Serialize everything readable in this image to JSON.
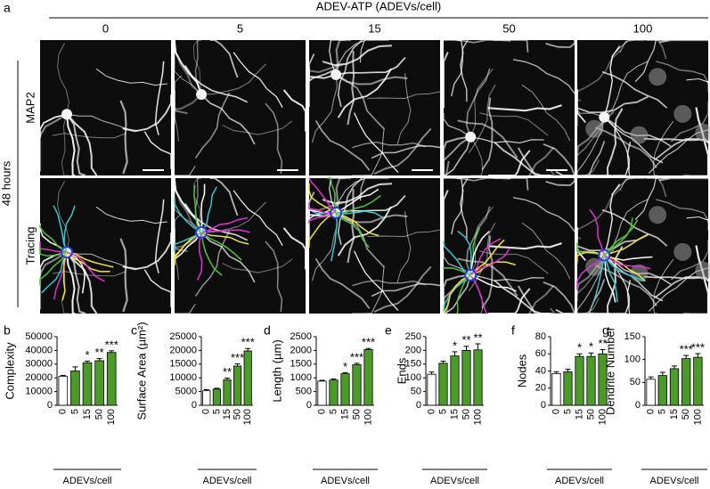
{
  "panel_a": {
    "label": "a",
    "header": "ADEV-ATP (ADEVs/cell)",
    "columns": [
      "0",
      "5",
      "15",
      "50",
      "100"
    ],
    "time_label": "48 hours",
    "rows": [
      "MAP2",
      "Tracing"
    ]
  },
  "chart_data": [
    {
      "type": "bar",
      "label": "b",
      "ylabel": "Complexity",
      "xlabel": "ADEVs/cell",
      "categories": [
        "0",
        "5",
        "15",
        "50",
        "100"
      ],
      "values": [
        21000,
        25000,
        31000,
        32500,
        38500
      ],
      "errors": [
        800,
        3000,
        1200,
        1500,
        1200
      ],
      "significance": [
        null,
        null,
        "*",
        "**",
        "***"
      ],
      "colors": [
        "#ffffff",
        "#4c9a2a",
        "#4c9a2a",
        "#4c9a2a",
        "#4c9a2a"
      ],
      "edgecolor": "#000000",
      "ylim": [
        0,
        50000
      ],
      "yticks": [
        0,
        10000,
        20000,
        30000,
        40000,
        50000
      ]
    },
    {
      "type": "bar",
      "label": "c",
      "ylabel": "Surface Area (µm²)",
      "xlabel": "ADEVs/cell",
      "categories": [
        "0",
        "5",
        "15",
        "50",
        "100"
      ],
      "values": [
        5300,
        5900,
        9300,
        14300,
        19800
      ],
      "errors": [
        400,
        300,
        600,
        800,
        900
      ],
      "significance": [
        null,
        null,
        "**",
        "***",
        "***"
      ],
      "colors": [
        "#ffffff",
        "#4c9a2a",
        "#4c9a2a",
        "#4c9a2a",
        "#4c9a2a"
      ],
      "edgecolor": "#000000",
      "ylim": [
        0,
        25000
      ],
      "yticks": [
        0,
        5000,
        10000,
        15000,
        20000,
        25000
      ]
    },
    {
      "type": "bar",
      "label": "d",
      "ylabel": "Length (µm)",
      "xlabel": "ADEVs/cell",
      "categories": [
        "0",
        "5",
        "15",
        "50",
        "100"
      ],
      "values": [
        880,
        920,
        1150,
        1480,
        2030
      ],
      "errors": [
        30,
        40,
        40,
        50,
        40
      ],
      "significance": [
        null,
        null,
        "*",
        "***",
        "***"
      ],
      "colors": [
        "#ffffff",
        "#4c9a2a",
        "#4c9a2a",
        "#4c9a2a",
        "#4c9a2a"
      ],
      "edgecolor": "#000000",
      "ylim": [
        0,
        2500
      ],
      "yticks": [
        0,
        500,
        1000,
        1500,
        2000,
        2500
      ]
    },
    {
      "type": "bar",
      "label": "e",
      "ylabel": "Ends",
      "xlabel": "ADEVs/cell",
      "categories": [
        "0",
        "5",
        "15",
        "50",
        "100"
      ],
      "values": [
        113,
        153,
        180,
        200,
        202
      ],
      "errors": [
        8,
        8,
        15,
        15,
        22
      ],
      "significance": [
        null,
        null,
        "*",
        "**",
        "**"
      ],
      "colors": [
        "#ffffff",
        "#4c9a2a",
        "#4c9a2a",
        "#4c9a2a",
        "#4c9a2a"
      ],
      "edgecolor": "#000000",
      "ylim": [
        0,
        250
      ],
      "yticks": [
        0,
        50,
        100,
        150,
        200,
        250
      ]
    },
    {
      "type": "bar",
      "label": "f",
      "ylabel": "Nodes",
      "xlabel": "ADEVs/cell",
      "categories": [
        "0",
        "5",
        "15",
        "50",
        "100"
      ],
      "values": [
        37,
        39,
        57,
        57,
        60
      ],
      "errors": [
        2,
        3,
        3,
        4,
        5
      ],
      "significance": [
        null,
        null,
        "*",
        "*",
        "**"
      ],
      "colors": [
        "#ffffff",
        "#4c9a2a",
        "#4c9a2a",
        "#4c9a2a",
        "#4c9a2a"
      ],
      "edgecolor": "#000000",
      "ylim": [
        0,
        80
      ],
      "yticks": [
        0,
        20,
        40,
        60,
        80
      ]
    },
    {
      "type": "bar",
      "label": "g",
      "ylabel": "Dendrite Number",
      "xlabel": "ADEVs/cell",
      "categories": [
        "0",
        "5",
        "15",
        "50",
        "100"
      ],
      "values": [
        57,
        65,
        80,
        102,
        105
      ],
      "errors": [
        5,
        7,
        6,
        7,
        8
      ],
      "significance": [
        null,
        null,
        null,
        "***",
        "***"
      ],
      "colors": [
        "#ffffff",
        "#4c9a2a",
        "#4c9a2a",
        "#4c9a2a",
        "#4c9a2a"
      ],
      "edgecolor": "#000000",
      "ylim": [
        0,
        150
      ],
      "yticks": [
        0,
        50,
        100,
        150
      ]
    }
  ]
}
